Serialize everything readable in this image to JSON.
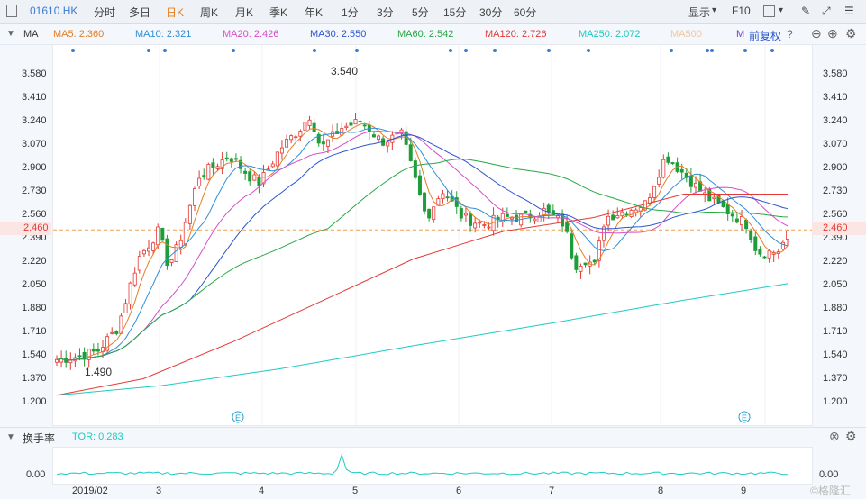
{
  "toolbar": {
    "code": "01610.HK",
    "tabs": [
      "分时",
      "多日",
      "日K",
      "周K",
      "月K",
      "季K",
      "年K",
      "1分",
      "3分",
      "5分",
      "15分",
      "30分",
      "60分"
    ],
    "active_tab": "日K",
    "display_label": "显示",
    "f10_label": "F10"
  },
  "ma_bar": {
    "label": "MA",
    "items": [
      {
        "text": "MA5: 2.360",
        "color": "#e67e22"
      },
      {
        "text": "MA10: 2.321",
        "color": "#2f8fd8"
      },
      {
        "text": "MA20: 2.426",
        "color": "#d64fc8"
      },
      {
        "text": "MA30: 2.550",
        "color": "#2a55d0"
      },
      {
        "text": "MA60: 2.542",
        "color": "#27a844"
      },
      {
        "text": "MA120: 2.726",
        "color": "#e53935"
      },
      {
        "text": "MA250: 2.072",
        "color": "#1ccbc3"
      },
      {
        "text": "MA500",
        "color": "#f0c8a0"
      },
      {
        "text": "M",
        "color": "#6c3fc4"
      }
    ],
    "adjust_label": "前复权"
  },
  "price_axis": {
    "ticks": [
      "3.580",
      "3.410",
      "3.240",
      "3.070",
      "2.900",
      "2.730",
      "2.560",
      "2.390",
      "2.220",
      "2.050",
      "1.880",
      "1.710",
      "1.540",
      "1.370",
      "1.200"
    ],
    "current_price": "2.460",
    "high_label": "3.540",
    "low_label": "1.490"
  },
  "volume": {
    "title": "换手率",
    "indicator": "TOR: 0.283",
    "tick": "0.00"
  },
  "x_axis": {
    "labels": [
      "2019/02",
      "3",
      "4",
      "5",
      "6",
      "7",
      "8",
      "9"
    ]
  },
  "watermark": "©格隆汇",
  "colors": {
    "up": "#e53935",
    "down": "#1f9d3a"
  }
}
